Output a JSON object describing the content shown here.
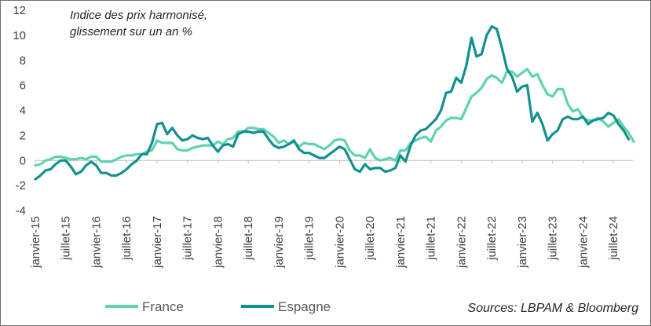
{
  "chart_data": {
    "type": "line",
    "title": "Indice des prix  harmonisé,",
    "subtitle": "glissement sur un an %",
    "source": "Sources: LBPAM & Bloomberg",
    "xlabel": "",
    "ylabel": "",
    "ylim": [
      -4,
      12
    ],
    "yticks": [
      -4,
      -2,
      0,
      2,
      4,
      6,
      8,
      10,
      12
    ],
    "x_start": "2015-01",
    "x_end": "2024-10",
    "xtick_labels": [
      "janvier-15",
      "juillet-15",
      "janvier-16",
      "juillet-16",
      "janvier-17",
      "juillet-17",
      "janvier-18",
      "juillet-18",
      "janvier-19",
      "juillet-19",
      "janvier-20",
      "juillet-20",
      "janvier-21",
      "juillet-21",
      "janvier-22",
      "juillet-22",
      "janvier-23",
      "juillet-23",
      "janvier-24",
      "juillet-24"
    ],
    "xtick_month_index": [
      0,
      6,
      12,
      18,
      24,
      30,
      36,
      42,
      48,
      54,
      60,
      66,
      72,
      78,
      84,
      90,
      96,
      102,
      108,
      114
    ],
    "series": [
      {
        "name": "France",
        "color": "#5fd3b0",
        "values": [
          -0.4,
          -0.3,
          0.0,
          0.1,
          0.3,
          0.3,
          0.2,
          0.1,
          0.1,
          0.2,
          0.1,
          0.3,
          0.3,
          -0.1,
          -0.1,
          -0.1,
          0.1,
          0.3,
          0.4,
          0.4,
          0.5,
          0.5,
          0.7,
          0.8,
          1.6,
          1.4,
          1.4,
          1.4,
          0.9,
          0.8,
          0.8,
          1.0,
          1.1,
          1.2,
          1.2,
          1.2,
          1.5,
          1.3,
          1.7,
          1.8,
          2.3,
          2.3,
          2.6,
          2.6,
          2.5,
          2.5,
          2.2,
          1.9,
          1.4,
          1.6,
          1.3,
          1.5,
          1.1,
          1.4,
          1.3,
          1.3,
          1.1,
          0.9,
          1.2,
          1.6,
          1.7,
          1.6,
          0.8,
          0.4,
          0.4,
          0.2,
          0.9,
          0.2,
          0.0,
          0.1,
          0.2,
          0.0,
          0.8,
          0.8,
          1.4,
          1.6,
          1.8,
          1.9,
          1.5,
          2.4,
          2.7,
          3.2,
          3.4,
          3.4,
          3.3,
          4.2,
          5.1,
          5.4,
          5.8,
          6.5,
          6.8,
          6.6,
          6.2,
          7.1,
          7.1,
          6.7,
          7.0,
          7.3,
          6.7,
          6.9,
          6.0,
          5.3,
          5.1,
          5.7,
          5.7,
          4.5,
          3.9,
          4.1,
          3.4,
          3.2,
          3.2,
          3.4,
          3.1,
          2.7,
          3.0,
          3.3,
          2.7,
          2.2,
          1.5
        ]
      },
      {
        "name": "Espagne",
        "color": "#12908e",
        "values": [
          -1.5,
          -1.2,
          -0.8,
          -0.7,
          -0.3,
          0.0,
          -0.0,
          -0.5,
          -1.1,
          -0.9,
          -0.4,
          -0.1,
          -0.4,
          -1.0,
          -1.0,
          -1.2,
          -1.2,
          -1.0,
          -0.7,
          -0.3,
          0.0,
          0.5,
          0.5,
          1.4,
          2.9,
          3.0,
          2.1,
          2.6,
          2.0,
          1.6,
          1.7,
          2.0,
          1.8,
          1.7,
          1.8,
          1.2,
          0.7,
          1.2,
          1.3,
          1.1,
          2.1,
          2.3,
          2.3,
          2.2,
          2.3,
          2.3,
          1.7,
          1.2,
          1.0,
          1.1,
          1.3,
          1.6,
          0.9,
          0.6,
          0.6,
          0.4,
          0.2,
          0.2,
          0.5,
          0.8,
          1.1,
          0.9,
          0.1,
          -0.7,
          -0.9,
          -0.3,
          -0.7,
          -0.6,
          -0.6,
          -0.9,
          -0.8,
          -0.6,
          0.4,
          -0.1,
          1.2,
          2.0,
          2.4,
          2.5,
          2.9,
          3.3,
          4.0,
          5.4,
          5.5,
          6.6,
          6.2,
          7.6,
          9.8,
          8.3,
          8.5,
          10.0,
          10.7,
          10.5,
          9.0,
          7.3,
          6.7,
          5.5,
          5.9,
          6.0,
          3.1,
          3.8,
          2.9,
          1.6,
          2.1,
          2.4,
          3.3,
          3.5,
          3.3,
          3.3,
          3.5,
          2.9,
          3.2,
          3.3,
          3.4,
          3.8,
          3.6,
          2.9,
          2.4,
          1.7
        ]
      }
    ]
  }
}
